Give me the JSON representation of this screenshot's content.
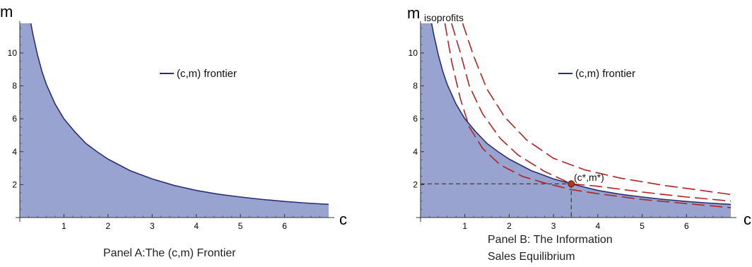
{
  "chart_data": [
    {
      "type": "area",
      "caption": "Panel A:The (c,m) Frontier",
      "xlabel": "c",
      "ylabel": "m",
      "xlim": [
        0,
        7
      ],
      "ylim": [
        0,
        11.8
      ],
      "xticks": [
        1,
        2,
        3,
        4,
        5,
        6
      ],
      "yticks": [
        2,
        4,
        6,
        8,
        10
      ],
      "grid": false,
      "legend_position": "upper-right",
      "series": [
        {
          "name": "(c,m)  frontier",
          "kind": "frontier-filled",
          "color": "#2b2f7a",
          "fill": "#98a3cf",
          "points": [
            [
              0.25,
              11.8
            ],
            [
              0.3,
              11.1
            ],
            [
              0.4,
              9.9
            ],
            [
              0.5,
              8.9
            ],
            [
              0.6,
              8.1
            ],
            [
              0.8,
              6.9
            ],
            [
              1.0,
              6.0
            ],
            [
              1.25,
              5.2
            ],
            [
              1.5,
              4.5
            ],
            [
              1.75,
              4.0
            ],
            [
              2.0,
              3.55
            ],
            [
              2.5,
              2.85
            ],
            [
              3.0,
              2.35
            ],
            [
              3.5,
              1.95
            ],
            [
              4.0,
              1.65
            ],
            [
              4.5,
              1.42
            ],
            [
              5.0,
              1.25
            ],
            [
              5.5,
              1.1
            ],
            [
              6.0,
              0.98
            ],
            [
              6.5,
              0.88
            ],
            [
              7.0,
              0.8
            ]
          ]
        }
      ]
    },
    {
      "type": "area",
      "caption_lines": [
        "Panel B: The Information",
        "Sales Equilibrium"
      ],
      "xlabel": "c",
      "ylabel": "m",
      "xlim": [
        0,
        7
      ],
      "ylim": [
        0,
        11.8
      ],
      "xticks": [
        1,
        2,
        3,
        4,
        5,
        6
      ],
      "yticks": [
        2,
        4,
        6,
        8,
        10
      ],
      "grid": false,
      "legend_position": "upper-right",
      "series": [
        {
          "name": "(c,m)  frontier",
          "kind": "frontier-filled",
          "color": "#2b2f7a",
          "fill": "#98a3cf",
          "points": [
            [
              0.25,
              11.8
            ],
            [
              0.3,
              11.1
            ],
            [
              0.4,
              9.9
            ],
            [
              0.5,
              8.9
            ],
            [
              0.6,
              8.1
            ],
            [
              0.8,
              6.9
            ],
            [
              1.0,
              6.0
            ],
            [
              1.25,
              5.2
            ],
            [
              1.5,
              4.5
            ],
            [
              1.75,
              4.0
            ],
            [
              2.0,
              3.55
            ],
            [
              2.5,
              2.85
            ],
            [
              3.0,
              2.35
            ],
            [
              3.4,
              2.05
            ],
            [
              4.0,
              1.65
            ],
            [
              4.5,
              1.42
            ],
            [
              5.0,
              1.25
            ],
            [
              5.5,
              1.1
            ],
            [
              6.0,
              0.98
            ],
            [
              6.5,
              0.88
            ],
            [
              7.0,
              0.8
            ]
          ]
        },
        {
          "kind": "isoprofit",
          "color": "#b22222",
          "dashed": true,
          "points": [
            [
              0.55,
              11.8
            ],
            [
              0.7,
              9.5
            ],
            [
              0.9,
              7.2
            ],
            [
              1.1,
              5.5
            ],
            [
              1.4,
              4.2
            ],
            [
              1.8,
              3.2
            ],
            [
              2.3,
              2.5
            ],
            [
              2.8,
              2.1
            ],
            [
              3.4,
              1.7
            ],
            [
              4.0,
              1.45
            ],
            [
              5.0,
              1.1
            ],
            [
              6.0,
              0.85
            ],
            [
              7.0,
              0.6
            ]
          ]
        },
        {
          "kind": "isoprofit",
          "color": "#b22222",
          "dashed": true,
          "points": [
            [
              0.7,
              11.8
            ],
            [
              0.9,
              10.0
            ],
            [
              1.1,
              8.0
            ],
            [
              1.4,
              6.3
            ],
            [
              1.8,
              4.8
            ],
            [
              2.2,
              3.8
            ],
            [
              2.8,
              2.8
            ],
            [
              3.4,
              2.05
            ],
            [
              4.0,
              1.9
            ],
            [
              5.0,
              1.55
            ],
            [
              6.0,
              1.25
            ],
            [
              7.0,
              1.0
            ]
          ]
        },
        {
          "kind": "isoprofit",
          "color": "#b22222",
          "dashed": true,
          "points": [
            [
              0.95,
              11.8
            ],
            [
              1.2,
              9.8
            ],
            [
              1.5,
              7.8
            ],
            [
              1.9,
              6.1
            ],
            [
              2.4,
              4.7
            ],
            [
              3.0,
              3.6
            ],
            [
              3.7,
              2.9
            ],
            [
              4.5,
              2.4
            ],
            [
              5.5,
              1.95
            ],
            [
              6.2,
              1.7
            ],
            [
              7.0,
              1.4
            ]
          ]
        }
      ],
      "equilibrium": {
        "label": "(c*,m*)",
        "c": 3.4,
        "m": 2.05,
        "color": "#b8341c"
      },
      "annotation": "isoprofits"
    }
  ]
}
